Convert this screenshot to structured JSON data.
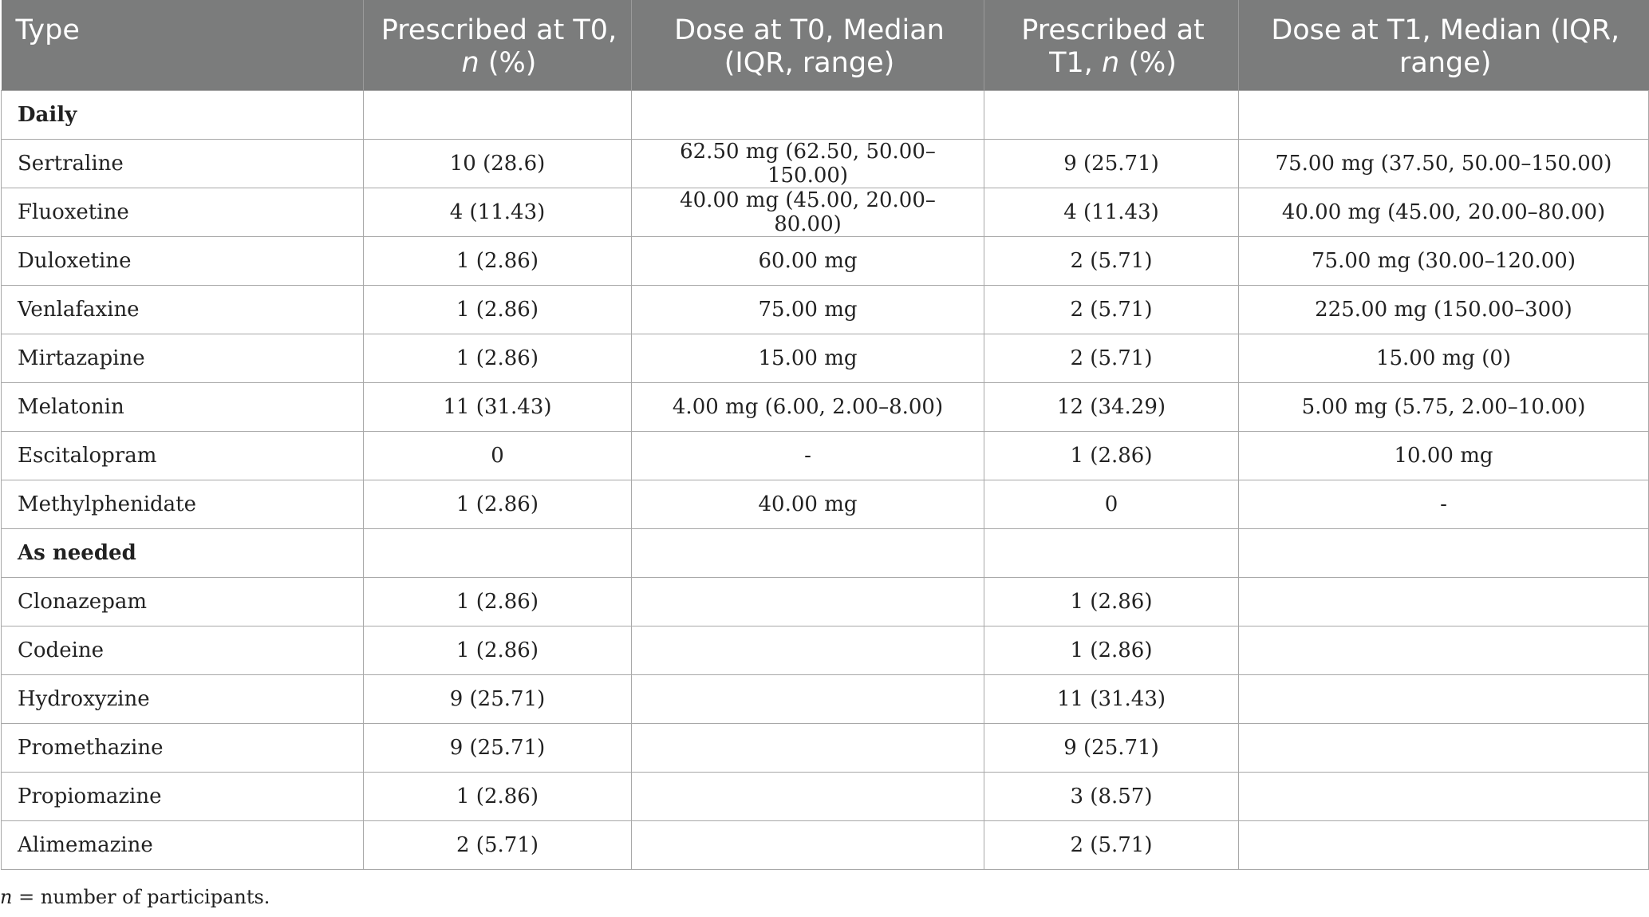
{
  "table": {
    "headers": {
      "type": "Type",
      "prescribed_t0_a": "Prescribed at T0,",
      "prescribed_t0_n": "n",
      "prescribed_t0_b": "(%)",
      "dose_t0": "Dose at T0, Median (IQR, range)",
      "prescribed_t1_a": "Prescribed at T1,",
      "prescribed_t1_n": "n",
      "prescribed_t1_b": "(%)",
      "dose_t1": "Dose at T1, Median (IQR, range)"
    },
    "rows": [
      {
        "section": true,
        "type": "Daily",
        "p0": "",
        "d0": "",
        "p1": "",
        "d1": ""
      },
      {
        "section": false,
        "type": "Sertraline",
        "p0": "10 (28.6)",
        "d0": "62.50 mg (62.50, 50.00–150.00)",
        "p1": "9 (25.71)",
        "d1": "75.00 mg (37.50, 50.00–150.00)"
      },
      {
        "section": false,
        "type": "Fluoxetine",
        "p0": "4 (11.43)",
        "d0": "40.00 mg (45.00, 20.00–80.00)",
        "p1": "4 (11.43)",
        "d1": "40.00 mg (45.00, 20.00–80.00)"
      },
      {
        "section": false,
        "type": "Duloxetine",
        "p0": "1 (2.86)",
        "d0": "60.00 mg",
        "p1": "2 (5.71)",
        "d1": "75.00 mg (30.00–120.00)"
      },
      {
        "section": false,
        "type": "Venlafaxine",
        "p0": "1 (2.86)",
        "d0": "75.00 mg",
        "p1": "2 (5.71)",
        "d1": "225.00 mg (150.00–300)"
      },
      {
        "section": false,
        "type": "Mirtazapine",
        "p0": "1 (2.86)",
        "d0": "15.00 mg",
        "p1": "2 (5.71)",
        "d1": "15.00 mg (0)"
      },
      {
        "section": false,
        "type": "Melatonin",
        "p0": "11 (31.43)",
        "d0": "4.00 mg (6.00, 2.00–8.00)",
        "p1": "12 (34.29)",
        "d1": "5.00 mg (5.75, 2.00–10.00)"
      },
      {
        "section": false,
        "type": "Escitalopram",
        "p0": "0",
        "d0": "-",
        "p1": "1 (2.86)",
        "d1": "10.00 mg"
      },
      {
        "section": false,
        "type": "Methylphenidate",
        "p0": "1 (2.86)",
        "d0": "40.00 mg",
        "p1": "0",
        "d1": "-"
      },
      {
        "section": true,
        "type": "As needed",
        "p0": "",
        "d0": "",
        "p1": "",
        "d1": ""
      },
      {
        "section": false,
        "type": "Clonazepam",
        "p0": "1 (2.86)",
        "d0": "",
        "p1": "1 (2.86)",
        "d1": ""
      },
      {
        "section": false,
        "type": "Codeine",
        "p0": "1 (2.86)",
        "d0": "",
        "p1": "1 (2.86)",
        "d1": ""
      },
      {
        "section": false,
        "type": "Hydroxyzine",
        "p0": "9 (25.71)",
        "d0": "",
        "p1": "11 (31.43)",
        "d1": ""
      },
      {
        "section": false,
        "type": "Promethazine",
        "p0": "9 (25.71)",
        "d0": "",
        "p1": "9 (25.71)",
        "d1": ""
      },
      {
        "section": false,
        "type": "Propiomazine",
        "p0": "1 (2.86)",
        "d0": "",
        "p1": "3 (8.57)",
        "d1": ""
      },
      {
        "section": false,
        "type": "Alimemazine",
        "p0": "2 (5.71)",
        "d0": "",
        "p1": "2 (5.71)",
        "d1": ""
      }
    ]
  },
  "footnote": {
    "symbol": "n",
    "text": " = number of participants."
  }
}
